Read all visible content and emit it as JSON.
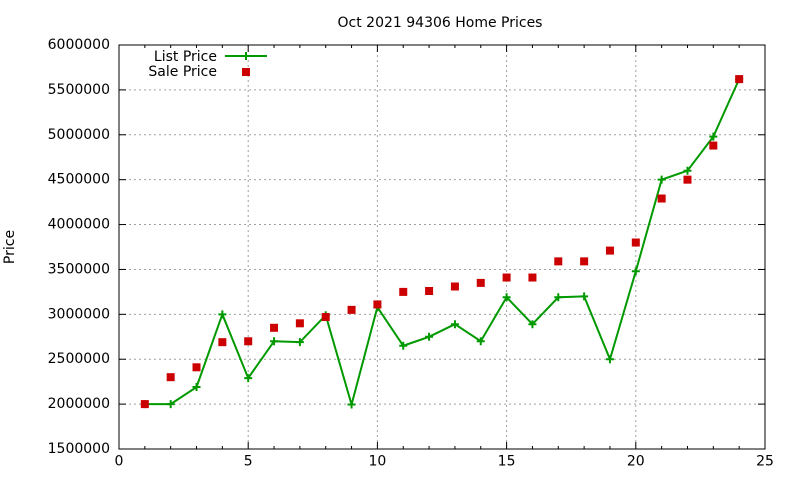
{
  "chart_data": {
    "type": "line",
    "title": "Oct 2021 94306 Home Prices",
    "xlabel": "",
    "ylabel": "Price",
    "xlim": [
      0,
      25
    ],
    "ylim": [
      1500000,
      6000000
    ],
    "x_ticks": [
      0,
      5,
      10,
      15,
      20,
      25
    ],
    "y_ticks": [
      1500000,
      2000000,
      2500000,
      3000000,
      3500000,
      4000000,
      4500000,
      5000000,
      5500000,
      6000000
    ],
    "grid": true,
    "legend_position": "top-left",
    "x": [
      1,
      2,
      3,
      4,
      5,
      6,
      7,
      8,
      9,
      10,
      11,
      12,
      13,
      14,
      15,
      16,
      17,
      18,
      19,
      20,
      21,
      22,
      23,
      24
    ],
    "series": [
      {
        "name": "List Price",
        "style": "line-plus",
        "color": "#009900",
        "values": [
          2000000,
          2000000,
          2190000,
          3000000,
          2290000,
          2700000,
          2690000,
          2990000,
          1995000,
          3080000,
          2650000,
          2750000,
          2890000,
          2700000,
          3190000,
          2890000,
          3190000,
          3200000,
          2500000,
          3480000,
          4500000,
          4600000,
          4980000,
          5620000
        ]
      },
      {
        "name": "Sale Price",
        "style": "square",
        "color": "#cc0000",
        "values": [
          2000000,
          2300000,
          2410000,
          2690000,
          2700000,
          2850000,
          2900000,
          2970000,
          3050000,
          3110000,
          3250000,
          3260000,
          3310000,
          3350000,
          3410000,
          3410000,
          3590000,
          3590000,
          3710000,
          3800000,
          4290000,
          4500000,
          4880000,
          5620000
        ]
      }
    ]
  }
}
